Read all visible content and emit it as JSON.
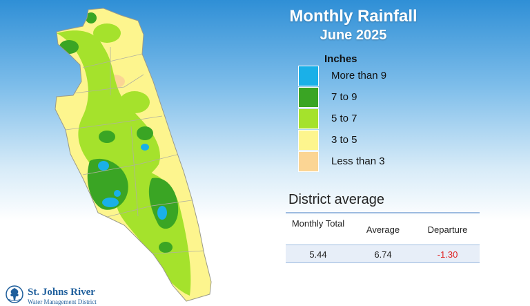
{
  "title": "Monthly Rainfall",
  "subtitle": "June 2025",
  "legend": {
    "title": "Inches",
    "items": [
      {
        "label": "More than 9",
        "color": "#1ab0e8"
      },
      {
        "label": "7 to 9",
        "color": "#3aa524"
      },
      {
        "label": "5 to 7",
        "color": "#a5e22c"
      },
      {
        "label": "3 to 5",
        "color": "#fdf58e"
      },
      {
        "label": "Less than 3",
        "color": "#fbd594"
      }
    ]
  },
  "district_average": {
    "title": "District average",
    "headers": [
      "Monthly Total",
      "Average",
      "Departure"
    ],
    "values": [
      "5.44",
      "6.74",
      "-1.30"
    ],
    "departure_color": "#e02020"
  },
  "logo": {
    "icon": "tree-in-circle-icon",
    "line1": "St. Johns River",
    "line2": "Water Management District"
  }
}
